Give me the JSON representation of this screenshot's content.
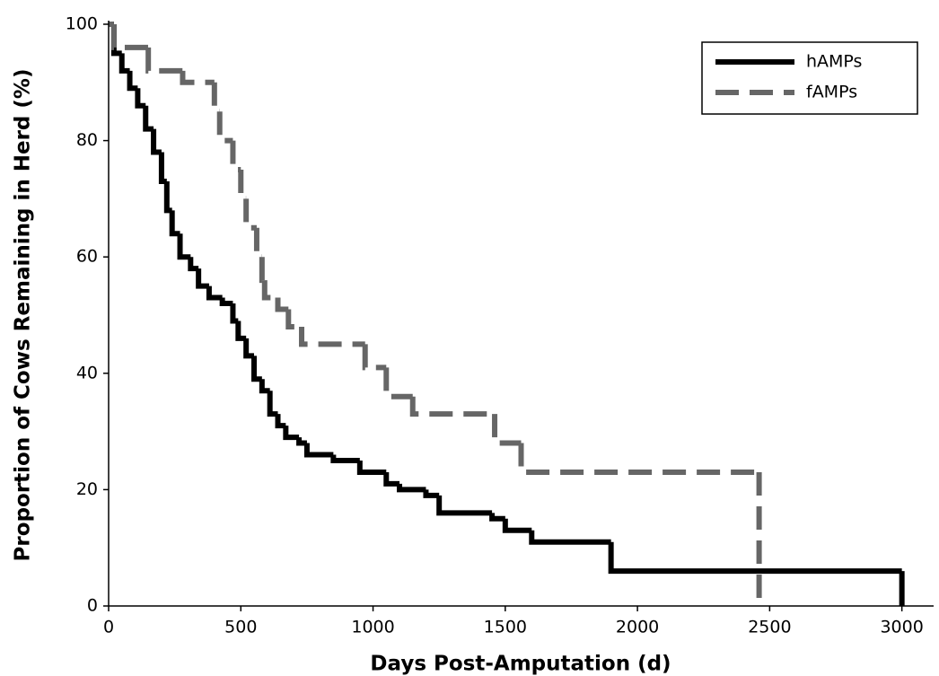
{
  "chart_data": {
    "type": "line",
    "steps": "post",
    "x_label": "Days Post-Amputation (d)",
    "y_label": "Proportion of Cows Remaining in Herd (%)",
    "xlim": [
      0,
      3120
    ],
    "xticks": [
      0,
      500,
      1000,
      1500,
      2000,
      2500,
      3000
    ],
    "ylim": [
      0,
      100
    ],
    "yticks": [
      0,
      20,
      40,
      60,
      80,
      100
    ],
    "legend": "top-right",
    "series": [
      {
        "name": "hAMPs",
        "color": "#000000",
        "dash": false,
        "x": [
          0,
          20,
          50,
          80,
          110,
          140,
          170,
          200,
          220,
          240,
          270,
          310,
          340,
          380,
          430,
          470,
          490,
          520,
          550,
          580,
          610,
          640,
          670,
          720,
          750,
          850,
          950,
          1050,
          1100,
          1200,
          1250,
          1450,
          1500,
          1600,
          1900,
          3000
        ],
        "values": [
          100,
          95,
          92,
          89,
          86,
          82,
          78,
          73,
          68,
          64,
          60,
          58,
          55,
          53,
          52,
          49,
          46,
          43,
          39,
          37,
          33,
          31,
          29,
          28,
          26,
          25,
          23,
          21,
          20,
          19,
          16,
          15,
          13,
          11,
          6,
          0
        ]
      },
      {
        "name": "fAMPs",
        "color": "#666666",
        "dash": true,
        "x": [
          0,
          20,
          150,
          280,
          400,
          420,
          470,
          500,
          520,
          560,
          580,
          590,
          640,
          680,
          730,
          970,
          1050,
          1150,
          1460,
          1560,
          2460
        ],
        "values": [
          100,
          96,
          92,
          90,
          85,
          80,
          75,
          70,
          65,
          60,
          56,
          53,
          51,
          48,
          45,
          41,
          36,
          33,
          28,
          23,
          0
        ]
      }
    ]
  }
}
